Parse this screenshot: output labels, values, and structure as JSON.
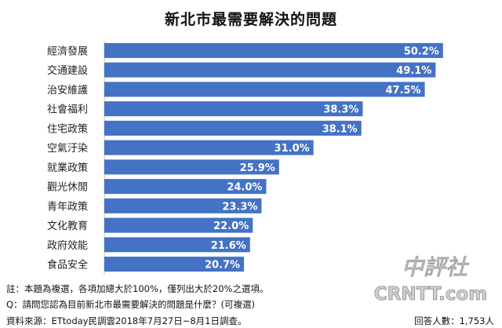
{
  "colors": {
    "bar": "#4472C4",
    "value_text": "#FFFFFF",
    "gridline": "#BFBFBF"
  },
  "chart_data": {
    "type": "bar",
    "orientation": "horizontal",
    "title": "新北市最需要解決的問題",
    "categories": [
      "經濟發展",
      "交通建設",
      "治安維護",
      "社會福利",
      "住宅政策",
      "空氣汙染",
      "就業政策",
      "觀光休閒",
      "青年政策",
      "文化教育",
      "政府效能",
      "食品安全"
    ],
    "values": [
      50.2,
      49.1,
      47.5,
      38.3,
      38.1,
      31.0,
      25.9,
      24.0,
      23.3,
      22.0,
      21.6,
      20.7
    ],
    "value_labels": [
      "50.2%",
      "49.1%",
      "47.5%",
      "38.3%",
      "38.1%",
      "31.0%",
      "25.9%",
      "24.0%",
      "23.3%",
      "22.0%",
      "21.6%",
      "20.7%"
    ],
    "xlim": [
      0,
      51.5
    ],
    "unit": "%",
    "grid": false,
    "legend": "none"
  },
  "notes": {
    "note": "註：本題為複選，各項加總大於100%，僅列出大於20%之選項。",
    "question": "Q：請問您認為目前新北市最需要解決的問題是什麼？(可複選)",
    "source": "資料來源：ETtoday民調雲2018年7月27日~8月1日調查。",
    "respondents": "回答人數：1,753人"
  },
  "watermark": {
    "chinese": "中評社",
    "latin": "CRNTT.com"
  }
}
